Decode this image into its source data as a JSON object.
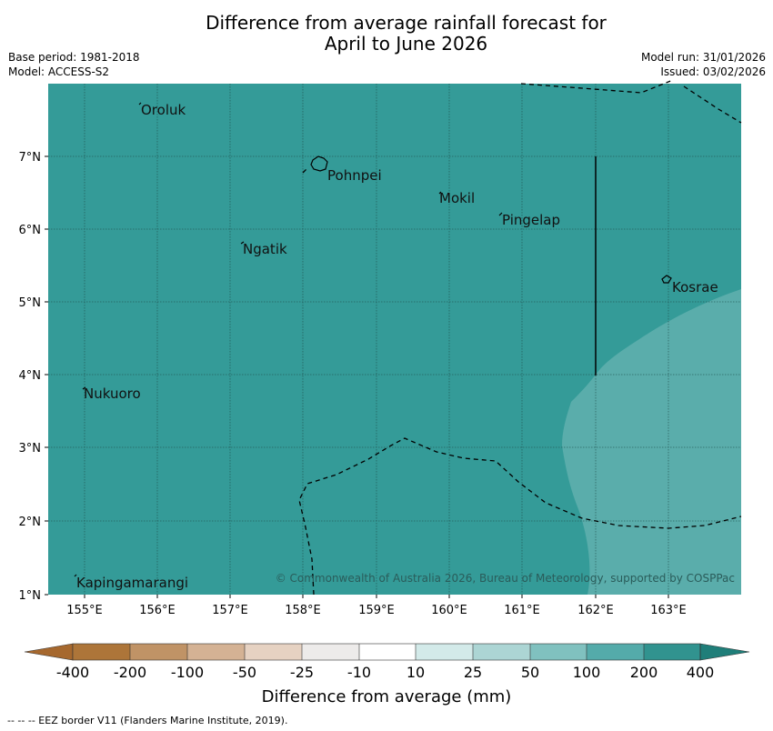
{
  "title": {
    "line1": "Difference from average rainfall forecast for",
    "line2": "April to June 2026"
  },
  "info": {
    "base_period": "Base period: 1981-2018",
    "model": "Model: ACCESS-S2",
    "model_run": "Model run: 31/01/2026",
    "issued": "Issued: 03/02/2026"
  },
  "map": {
    "lon_ticks": [
      "155°E",
      "156°E",
      "157°E",
      "158°E",
      "159°E",
      "160°E",
      "161°E",
      "162°E",
      "163°E"
    ],
    "lat_ticks": [
      "7°N",
      "6°N",
      "5°N",
      "4°N",
      "3°N",
      "2°N",
      "1°N"
    ],
    "places": [
      "Oroluk",
      "Pohnpei",
      "Mokil",
      "Pingelap",
      "Ngatik",
      "Kosrae",
      "Nukuoro",
      "Kapingamarangi"
    ],
    "copyright": "© Commonwealth of Australia 2026, Bureau of Meteorology, supported by COSPPac",
    "colors": {
      "base": "#349b98",
      "lighter": "#5aadab"
    }
  },
  "legend": {
    "tick_labels": [
      "-400",
      "-200",
      "-100",
      "-50",
      "-25",
      "-10",
      "10",
      "25",
      "50",
      "100",
      "200",
      "400"
    ],
    "colors": [
      "#ad7539",
      "#c09366",
      "#d4b294",
      "#e6d2c2",
      "#edebea",
      "#ffffff",
      "#d3eae9",
      "#acd5d4",
      "#80c1bf",
      "#54abaa",
      "#31938f",
      "#1f7e79",
      "#a6682e"
    ],
    "label": "Difference from average (mm)"
  },
  "footer": "--  --  -- EEZ border V11 (Flanders Marine Institute, 2019)."
}
